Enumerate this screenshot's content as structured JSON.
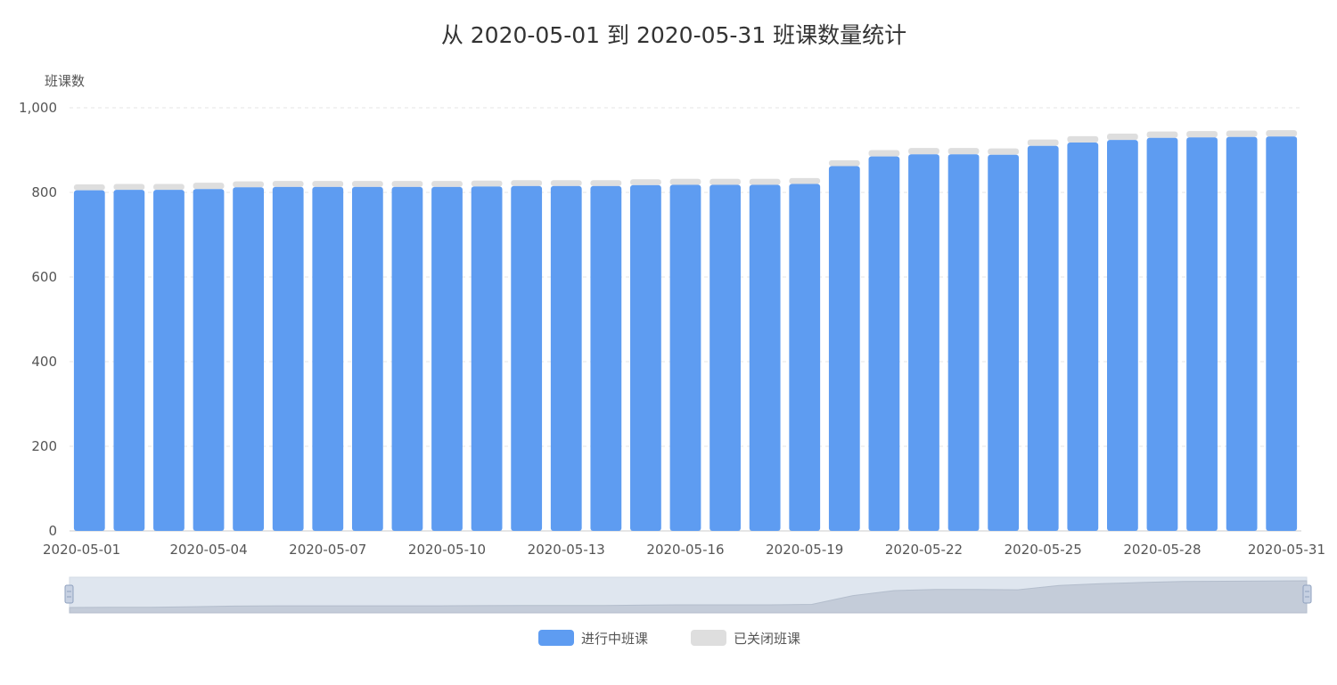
{
  "chart_data": {
    "type": "bar",
    "stacked": true,
    "title": "从 2020-05-01 到 2020-05-31 班课数量统计",
    "ylabel": "班课数",
    "ylim": [
      0,
      1000
    ],
    "yticks": [
      "0",
      "200",
      "400",
      "600",
      "800",
      "1,000"
    ],
    "categories": [
      "2020-05-01",
      "2020-05-02",
      "2020-05-03",
      "2020-05-04",
      "2020-05-05",
      "2020-05-06",
      "2020-05-07",
      "2020-05-08",
      "2020-05-09",
      "2020-05-10",
      "2020-05-11",
      "2020-05-12",
      "2020-05-13",
      "2020-05-14",
      "2020-05-15",
      "2020-05-16",
      "2020-05-17",
      "2020-05-18",
      "2020-05-19",
      "2020-05-20",
      "2020-05-21",
      "2020-05-22",
      "2020-05-23",
      "2020-05-24",
      "2020-05-25",
      "2020-05-26",
      "2020-05-27",
      "2020-05-28",
      "2020-05-29",
      "2020-05-30",
      "2020-05-31"
    ],
    "x_tick_labels": [
      "2020-05-01",
      "2020-05-04",
      "2020-05-07",
      "2020-05-10",
      "2020-05-13",
      "2020-05-16",
      "2020-05-19",
      "2020-05-22",
      "2020-05-25",
      "2020-05-28",
      "2020-05-31"
    ],
    "series": [
      {
        "name": "进行中班课",
        "color": "#5e9cf1",
        "values": [
          805,
          806,
          806,
          808,
          812,
          813,
          813,
          813,
          813,
          813,
          814,
          815,
          815,
          815,
          817,
          818,
          818,
          818,
          820,
          862,
          885,
          890,
          890,
          889,
          910,
          918,
          924,
          929,
          930,
          931,
          932
        ]
      },
      {
        "name": "已关闭班课",
        "color": "#dedede",
        "values": [
          14,
          14,
          14,
          15,
          14,
          14,
          14,
          14,
          14,
          14,
          14,
          14,
          14,
          14,
          14,
          14,
          14,
          14,
          14,
          14,
          15,
          15,
          15,
          15,
          15,
          15,
          15,
          15,
          15,
          15,
          15
        ]
      }
    ],
    "grid": true,
    "legend_position": "bottom-center",
    "data_zoom_slider": true
  }
}
